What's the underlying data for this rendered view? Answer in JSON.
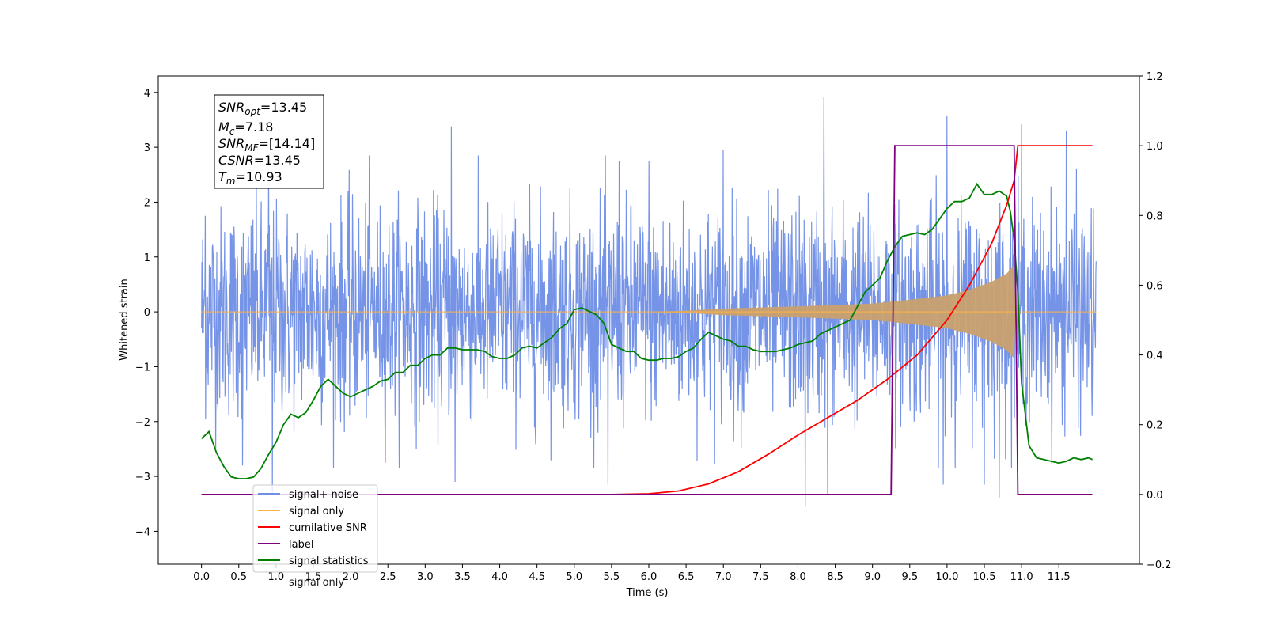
{
  "chart_data": {
    "type": "line",
    "xlabel": "Time (s)",
    "ylabel": "Whitened strain",
    "xlim": [
      -0.58,
      12.58
    ],
    "ylim": [
      -4.6,
      4.3
    ],
    "y2lim": [
      -0.2,
      1.2
    ],
    "x_ticks": [
      "0.0",
      "0.5",
      "1.0",
      "1.5",
      "2.0",
      "2.5",
      "3.0",
      "3.5",
      "4.0",
      "4.5",
      "5.0",
      "5.5",
      "6.0",
      "6.5",
      "7.0",
      "7.5",
      "8.0",
      "8.5",
      "9.0",
      "9.5",
      "10.0",
      "10.5",
      "11.0",
      "11.5"
    ],
    "y_ticks": [
      "4",
      "3",
      "2",
      "1",
      "0",
      "−1",
      "−2",
      "−3",
      "−4"
    ],
    "y2_ticks": [
      "1.2",
      "1.0",
      "0.8",
      "0.6",
      "0.4",
      "0.2",
      "0.0",
      "−0.2"
    ],
    "grid": false,
    "legend_position": "lower-left",
    "colors": {
      "signal_noise": "#6f8ee6",
      "signal_only": "#ffb347",
      "cumulative_snr": "#ff0000",
      "label": "#800080",
      "signal_statistics": "#008000",
      "signal_fill": "#c8a06e"
    },
    "series": [
      {
        "name": "signal+ noise",
        "axis": "left",
        "x_range": [
          0.0,
          12.0
        ],
        "envelope": {
          "typical": 1.5,
          "max": 3.9,
          "min": -3.5
        },
        "peaks": [
          [
            0.05,
            1.75
          ],
          [
            0.9,
            2.55
          ],
          [
            2.25,
            2.85
          ],
          [
            3.35,
            3.38
          ],
          [
            5.6,
            2.75
          ],
          [
            6.0,
            2.75
          ],
          [
            7.0,
            2.95
          ],
          [
            8.35,
            3.92
          ],
          [
            10.0,
            3.58
          ],
          [
            11.0,
            3.42
          ],
          [
            11.6,
            3.3
          ]
        ],
        "troughs": [
          [
            0.55,
            -2.8
          ],
          [
            0.95,
            -3.3
          ],
          [
            3.4,
            -3.1
          ],
          [
            5.45,
            -3.15
          ],
          [
            8.1,
            -3.55
          ],
          [
            8.4,
            -3.35
          ],
          [
            9.95,
            -3.15
          ],
          [
            10.5,
            -3.15
          ],
          [
            10.7,
            -3.4
          ]
        ]
      },
      {
        "name": "signal only",
        "axis": "left",
        "description": "chirp that grows from 0 to amplitude about 0.85 at 10.9 s, then zero",
        "amplitude_points": [
          [
            0.0,
            0.0
          ],
          [
            6.0,
            0.0
          ],
          [
            6.5,
            0.02
          ],
          [
            7.0,
            0.06
          ],
          [
            8.0,
            0.1
          ],
          [
            9.0,
            0.15
          ],
          [
            9.5,
            0.22
          ],
          [
            10.0,
            0.3
          ],
          [
            10.3,
            0.4
          ],
          [
            10.6,
            0.55
          ],
          [
            10.8,
            0.7
          ],
          [
            10.9,
            0.85
          ],
          [
            10.92,
            0.0
          ],
          [
            12.0,
            0.0
          ]
        ]
      },
      {
        "name": "cumilative SNR",
        "axis": "right",
        "x": [
          0.0,
          5.5,
          6.0,
          6.4,
          6.8,
          7.2,
          7.6,
          8.0,
          8.4,
          8.8,
          9.2,
          9.6,
          10.0,
          10.3,
          10.6,
          10.8,
          10.9,
          10.95,
          11.0,
          11.5,
          11.95
        ],
        "y": [
          0.0,
          0.0,
          0.002,
          0.01,
          0.03,
          0.065,
          0.115,
          0.17,
          0.22,
          0.27,
          0.33,
          0.4,
          0.5,
          0.6,
          0.72,
          0.83,
          0.9,
          1.0,
          1.0,
          1.0,
          1.0
        ]
      },
      {
        "name": "label",
        "axis": "right",
        "x": [
          0.0,
          9.25,
          9.3,
          10.9,
          10.95,
          11.95
        ],
        "y": [
          0.0,
          0.0,
          1.0,
          1.0,
          0.0,
          0.0
        ]
      },
      {
        "name": "signal statistics",
        "axis": "right",
        "x": [
          0.0,
          0.1,
          0.2,
          0.3,
          0.4,
          0.5,
          0.6,
          0.7,
          0.8,
          0.9,
          1.0,
          1.1,
          1.2,
          1.3,
          1.4,
          1.5,
          1.6,
          1.7,
          1.8,
          1.9,
          2.0,
          2.1,
          2.2,
          2.3,
          2.4,
          2.5,
          2.6,
          2.7,
          2.8,
          2.9,
          3.0,
          3.1,
          3.2,
          3.3,
          3.4,
          3.5,
          3.6,
          3.7,
          3.8,
          3.9,
          4.0,
          4.1,
          4.2,
          4.3,
          4.4,
          4.5,
          4.6,
          4.7,
          4.8,
          4.9,
          5.0,
          5.1,
          5.2,
          5.3,
          5.4,
          5.5,
          5.6,
          5.7,
          5.8,
          5.9,
          6.0,
          6.1,
          6.2,
          6.3,
          6.4,
          6.5,
          6.6,
          6.7,
          6.8,
          6.9,
          7.0,
          7.1,
          7.2,
          7.3,
          7.4,
          7.5,
          7.6,
          7.7,
          7.8,
          7.9,
          8.0,
          8.1,
          8.2,
          8.3,
          8.4,
          8.5,
          8.6,
          8.7,
          8.8,
          8.9,
          9.0,
          9.1,
          9.2,
          9.3,
          9.4,
          9.5,
          9.6,
          9.7,
          9.8,
          9.9,
          10.0,
          10.1,
          10.2,
          10.3,
          10.4,
          10.5,
          10.6,
          10.7,
          10.8,
          10.85,
          10.9,
          10.95,
          11.0,
          11.1,
          11.2,
          11.3,
          11.4,
          11.5,
          11.6,
          11.7,
          11.8,
          11.9,
          11.95
        ],
        "y": [
          0.16,
          0.18,
          0.12,
          0.08,
          0.05,
          0.045,
          0.045,
          0.05,
          0.075,
          0.115,
          0.15,
          0.2,
          0.23,
          0.22,
          0.235,
          0.27,
          0.31,
          0.33,
          0.31,
          0.29,
          0.28,
          0.29,
          0.3,
          0.31,
          0.325,
          0.33,
          0.35,
          0.35,
          0.37,
          0.37,
          0.39,
          0.4,
          0.4,
          0.42,
          0.42,
          0.415,
          0.415,
          0.415,
          0.41,
          0.395,
          0.39,
          0.39,
          0.4,
          0.42,
          0.425,
          0.42,
          0.435,
          0.45,
          0.475,
          0.49,
          0.53,
          0.535,
          0.525,
          0.515,
          0.49,
          0.43,
          0.42,
          0.41,
          0.41,
          0.39,
          0.385,
          0.385,
          0.39,
          0.39,
          0.395,
          0.41,
          0.42,
          0.445,
          0.465,
          0.455,
          0.445,
          0.44,
          0.425,
          0.425,
          0.415,
          0.41,
          0.41,
          0.41,
          0.415,
          0.42,
          0.43,
          0.435,
          0.44,
          0.46,
          0.47,
          0.48,
          0.49,
          0.5,
          0.54,
          0.58,
          0.6,
          0.62,
          0.67,
          0.71,
          0.74,
          0.745,
          0.75,
          0.745,
          0.76,
          0.79,
          0.82,
          0.84,
          0.84,
          0.85,
          0.89,
          0.86,
          0.86,
          0.87,
          0.855,
          0.81,
          0.73,
          0.58,
          0.32,
          0.14,
          0.105,
          0.1,
          0.095,
          0.09,
          0.095,
          0.105,
          0.1,
          0.105,
          0.1
        ]
      }
    ],
    "legend": [
      "signal+ noise",
      "signal only",
      "cumilative SNR",
      "label",
      "signal statistics"
    ],
    "legend_overlap_text": "signal only",
    "info_box": {
      "snr_opt_main": "SNR",
      "snr_opt_sub": "opt",
      "snr_opt_value": "=13.45",
      "mc_main": "M",
      "mc_sub": "c",
      "mc_value": "=7.18",
      "snr_mf_main": "SNR",
      "snr_mf_sub": "MF",
      "snr_mf_value": "=[14.14]",
      "csnr_main": "CSNR",
      "csnr_value": "=13.45",
      "tm_main": "T",
      "tm_sub": "m",
      "tm_value": "=10.93"
    }
  }
}
